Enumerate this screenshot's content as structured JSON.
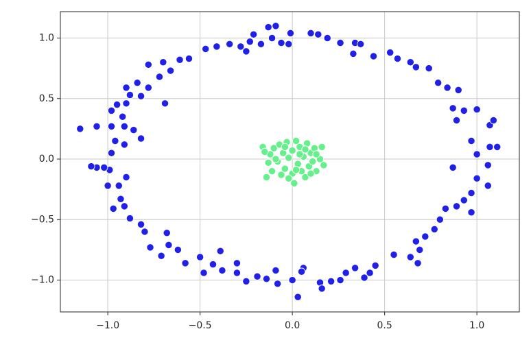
{
  "chart_data": {
    "type": "scatter",
    "xlim": [
      -1.257,
      1.23
    ],
    "ylim": [
      -1.263,
      1.218
    ],
    "xticks": [
      {
        "value": -1.0,
        "label": "−1.0"
      },
      {
        "value": -0.5,
        "label": "−0.5"
      },
      {
        "value": 0.0,
        "label": "0.0"
      },
      {
        "value": 0.5,
        "label": "0.5"
      },
      {
        "value": 1.0,
        "label": "1.0"
      }
    ],
    "yticks": [
      {
        "value": -1.0,
        "label": "−1.0"
      },
      {
        "value": -0.5,
        "label": "−0.5"
      },
      {
        "value": 0.0,
        "label": "0.0"
      },
      {
        "value": 0.5,
        "label": "0.5"
      },
      {
        "value": 1.0,
        "label": "1.0"
      }
    ],
    "grid": true,
    "series": [
      {
        "color": "#2020e8",
        "x": [
          -0.13,
          -0.09,
          -0.01,
          0.1,
          0.14,
          0.19,
          0.26,
          0.34,
          0.37,
          0.33,
          0.44,
          0.53,
          0.57,
          0.64,
          0.67,
          0.74,
          0.79,
          0.84,
          0.9,
          0.87,
          0.93,
          1.0,
          0.89,
          1.07,
          1.09,
          0.97,
          1.07,
          1.11,
          1.0,
          0.87,
          1.06,
          1.0,
          1.06,
          0.97,
          0.93,
          0.89,
          0.83,
          0.97,
          0.8,
          0.77,
          0.72,
          0.67,
          0.69,
          0.64,
          0.68,
          0.55,
          0.45,
          0.42,
          0.34,
          0.39,
          0.29,
          0.26,
          0.21,
          0.15,
          0.16,
          0.06,
          0.05,
          0.03,
          0.0,
          -0.08,
          -0.09,
          -0.14,
          -0.19,
          -0.25,
          -0.3,
          -0.3,
          -0.38,
          -0.39,
          -0.43,
          -0.48,
          -0.5,
          -0.58,
          -0.62,
          -0.67,
          -0.71,
          -0.77,
          -0.68,
          -0.8,
          -0.82,
          -0.88,
          -0.91,
          -0.97,
          -0.93,
          -0.9,
          -0.94,
          -1.0,
          -0.99,
          -1.06,
          -1.09,
          -1.02,
          -0.98,
          -0.96,
          -0.91,
          -0.82,
          -1.15,
          -1.06,
          -0.98,
          -0.91,
          -0.86,
          -0.92,
          -0.98,
          -0.95,
          -0.9,
          -0.88,
          -0.82,
          -0.9,
          -0.84,
          -0.78,
          -0.69,
          -0.72,
          -0.66,
          -0.78,
          -0.7,
          -0.61,
          -0.56,
          -0.47,
          -0.41,
          -0.34,
          -0.28,
          -0.25,
          -0.23,
          -0.17,
          -0.21,
          -0.11,
          -0.06,
          -0.02
        ],
        "y": [
          1.09,
          1.1,
          1.04,
          1.04,
          1.03,
          1.0,
          0.96,
          0.96,
          0.95,
          0.87,
          0.85,
          0.88,
          0.83,
          0.8,
          0.76,
          0.75,
          0.63,
          0.59,
          0.57,
          0.42,
          0.4,
          0.41,
          0.32,
          0.28,
          0.32,
          0.15,
          0.1,
          0.1,
          0.04,
          -0.07,
          -0.05,
          -0.16,
          -0.22,
          -0.28,
          -0.34,
          -0.39,
          -0.41,
          -0.44,
          -0.5,
          -0.58,
          -0.64,
          -0.68,
          -0.75,
          -0.81,
          -0.86,
          -0.79,
          -0.88,
          -0.94,
          -0.9,
          -0.98,
          -0.94,
          -1.0,
          -1.01,
          -1.02,
          -1.07,
          -0.9,
          -0.93,
          -1.14,
          -1.0,
          -1.03,
          -0.92,
          -0.99,
          -0.97,
          -1.01,
          -0.94,
          -0.86,
          -0.92,
          -0.76,
          -0.87,
          -0.94,
          -0.81,
          -0.86,
          -0.75,
          -0.71,
          -0.8,
          -0.73,
          -0.61,
          -0.6,
          -0.54,
          -0.49,
          -0.39,
          -0.41,
          -0.33,
          -0.15,
          -0.22,
          -0.22,
          -0.09,
          -0.07,
          -0.06,
          -0.07,
          0.05,
          0.15,
          0.12,
          0.17,
          0.25,
          0.27,
          0.27,
          0.27,
          0.24,
          0.35,
          0.4,
          0.45,
          0.46,
          0.53,
          0.52,
          0.59,
          0.63,
          0.59,
          0.46,
          0.68,
          0.73,
          0.78,
          0.8,
          0.82,
          0.83,
          0.91,
          0.93,
          0.95,
          0.93,
          0.89,
          0.97,
          0.95,
          1.03,
          1.0,
          0.96,
          0.95
        ]
      },
      {
        "color": "#66f08c",
        "x": [
          -0.16,
          -0.14,
          -0.12,
          -0.1,
          -0.08,
          -0.07,
          -0.05,
          -0.04,
          -0.03,
          -0.02,
          0.0,
          0.0,
          0.01,
          0.02,
          0.03,
          0.04,
          0.05,
          0.06,
          0.07,
          0.08,
          0.09,
          0.1,
          0.11,
          0.12,
          0.13,
          0.15,
          0.16,
          0.17,
          -0.11,
          -0.13,
          -0.06,
          -0.09,
          0.04,
          -0.02,
          0.07,
          -0.15,
          0.13,
          0.02,
          -0.04,
          0.1
        ],
        "y": [
          0.1,
          -0.15,
          0.04,
          0.09,
          -0.02,
          0.12,
          0.05,
          -0.08,
          0.14,
          0.01,
          -0.12,
          0.07,
          -0.2,
          0.15,
          -0.04,
          0.1,
          -0.1,
          0.02,
          -0.15,
          0.13,
          -0.06,
          0.05,
          -0.02,
          0.09,
          -0.1,
          0.0,
          0.1,
          -0.05,
          -0.1,
          -0.03,
          -0.13,
          0.0,
          0.04,
          -0.16,
          0.08,
          0.06,
          0.04,
          -0.09,
          0.1,
          -0.12
        ]
      }
    ]
  }
}
